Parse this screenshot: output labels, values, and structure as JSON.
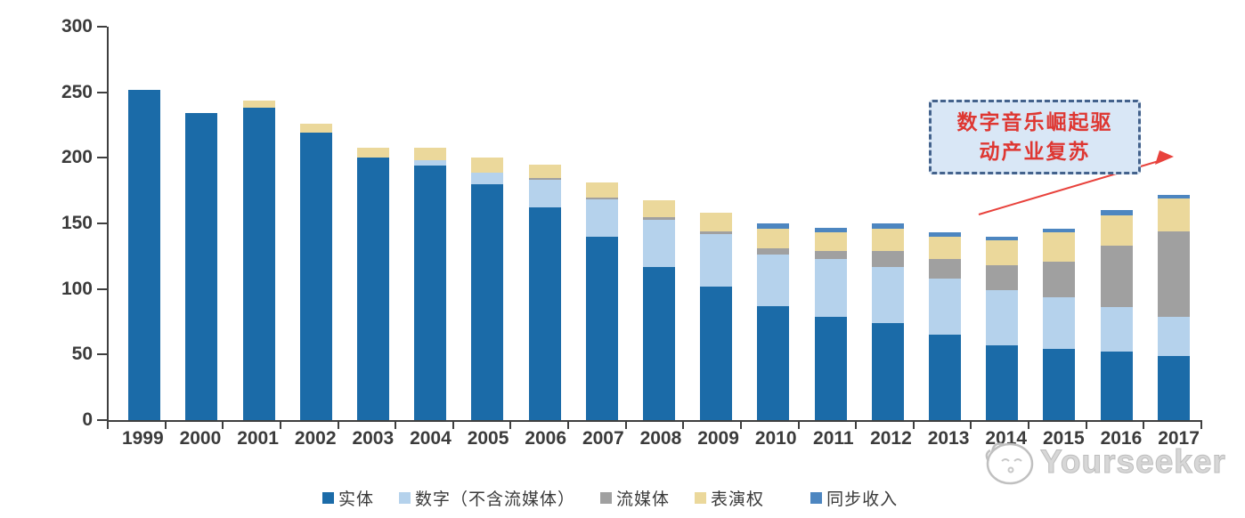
{
  "colors": {
    "axis": "#3f3f3f",
    "tick_text": "#3b3b3b",
    "callout_bg": "#d9e7f6",
    "callout_border": "#43628c",
    "callout_text": "#de3732",
    "arrow": "#e8423c",
    "watermark": "#c6c6c6"
  },
  "chart_data": {
    "type": "bar",
    "stacked": true,
    "title": "",
    "xlabel": "",
    "ylabel": "",
    "ylim": [
      0,
      300
    ],
    "yticks": [
      0,
      50,
      100,
      150,
      200,
      250,
      300
    ],
    "grid": false,
    "legend_position": "bottom",
    "categories": [
      "1999",
      "2000",
      "2001",
      "2002",
      "2003",
      "2004",
      "2005",
      "2006",
      "2007",
      "2008",
      "2009",
      "2010",
      "2011",
      "2012",
      "2013",
      "2014",
      "2015",
      "2016",
      "2017"
    ],
    "series": [
      {
        "id": "physical",
        "name": "实体",
        "color": "#1b6ba8",
        "values": [
          252,
          234,
          238,
          219,
          200,
          194,
          180,
          162,
          140,
          117,
          102,
          87,
          79,
          74,
          65,
          57,
          54,
          52,
          49
        ]
      },
      {
        "id": "digital-ex-streaming",
        "name": "数字（不含流媒体）",
        "color": "#b5d2ec",
        "values": [
          0,
          0,
          0,
          0,
          0,
          4,
          9,
          21,
          28,
          36,
          40,
          39,
          44,
          43,
          43,
          42,
          40,
          34,
          30
        ]
      },
      {
        "id": "streaming",
        "name": "流媒体",
        "color": "#a0a0a0",
        "values": [
          0,
          0,
          0,
          0,
          0,
          0,
          0,
          2,
          2,
          2,
          2,
          5,
          6,
          12,
          15,
          19,
          27,
          47,
          65
        ]
      },
      {
        "id": "performance-rights",
        "name": "表演权",
        "color": "#ebd89b",
        "values": [
          0,
          0,
          6,
          7,
          8,
          10,
          11,
          10,
          11,
          13,
          14,
          15,
          14,
          17,
          17,
          19,
          22,
          23,
          25
        ]
      },
      {
        "id": "sync-revenue",
        "name": "同步收入",
        "color": "#4d86c0",
        "values": [
          0,
          0,
          0,
          0,
          0,
          0,
          0,
          0,
          0,
          0,
          0,
          4,
          4,
          4,
          3,
          3,
          3,
          4,
          3
        ]
      }
    ],
    "annotation": {
      "line1": "数字音乐崛起驱",
      "line2": "动产业复苏"
    }
  },
  "watermark": {
    "text": "Yourseeker"
  }
}
